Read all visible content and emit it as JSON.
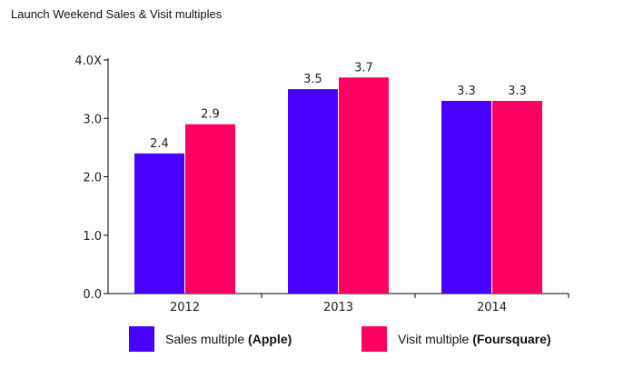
{
  "chart_data": {
    "type": "bar",
    "title": "Launch Weekend Sales & Visit multiples",
    "xlabel": "",
    "ylabel": "",
    "categories": [
      "2012",
      "2013",
      "2014"
    ],
    "ylim": [
      0,
      4
    ],
    "yticks": [
      "0.0",
      "1.0",
      "2.0",
      "3.0",
      "4.0X"
    ],
    "grid": false,
    "legend_position": "bottom",
    "series": [
      {
        "name": "Sales multiple",
        "name_bold": "(Apple)",
        "values": [
          2.4,
          3.5,
          3.3
        ],
        "labels": [
          "2.4",
          "3.5",
          "3.3"
        ],
        "color": "#4a00ff"
      },
      {
        "name": "Visit multiple",
        "name_bold": "(Foursquare)",
        "values": [
          2.9,
          3.7,
          3.3
        ],
        "labels": [
          "2.9",
          "3.7",
          "3.3"
        ],
        "color": "#ff0062"
      }
    ]
  }
}
